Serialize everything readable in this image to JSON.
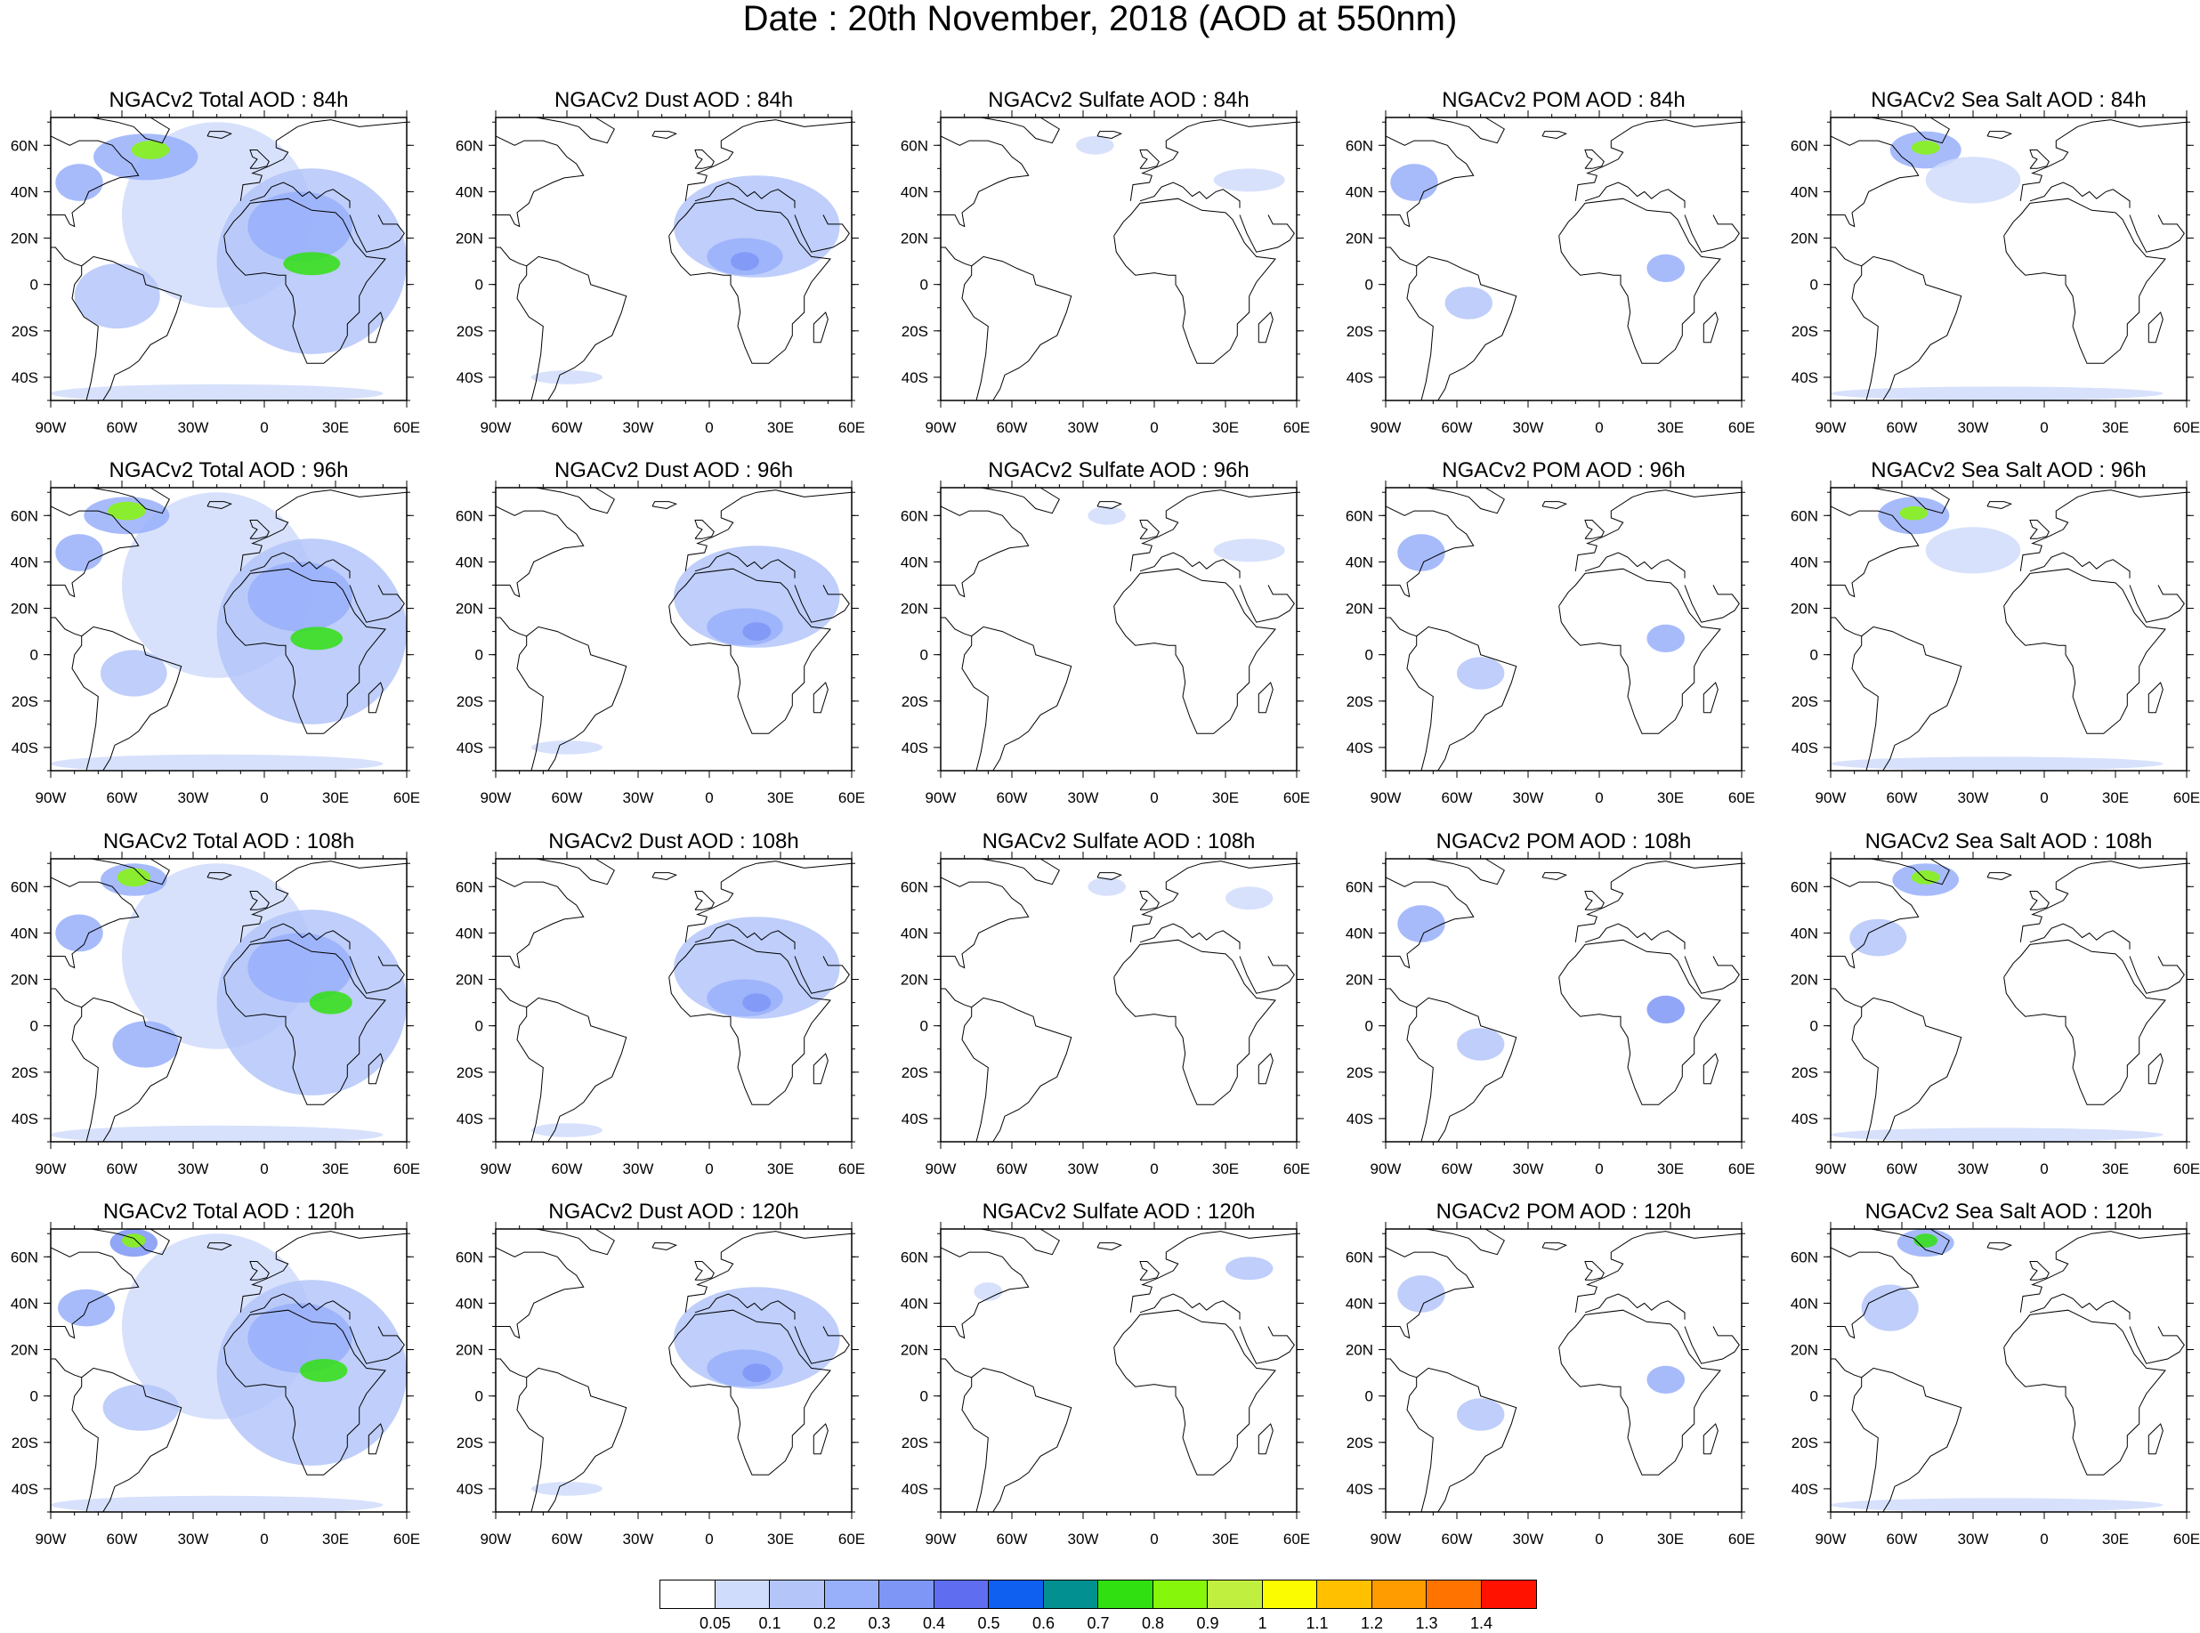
{
  "title": "Date : 20th November, 2018 (AOD at 550nm)",
  "rows": [
    "84h",
    "96h",
    "108h",
    "120h"
  ],
  "panels": [
    [
      "NGACv2 Total AOD : 84h",
      "NGACv2 Dust AOD : 84h",
      "NGACv2 Sulfate AOD : 84h",
      "NGACv2 POM AOD : 84h",
      "NGACv2 Sea Salt AOD : 84h"
    ],
    [
      "NGACv2 Total AOD : 96h",
      "NGACv2 Dust AOD : 96h",
      "NGACv2 Sulfate AOD : 96h",
      "NGACv2 POM AOD : 96h",
      "NGACv2 Sea Salt AOD : 96h"
    ],
    [
      "NGACv2 Total AOD : 108h",
      "NGACv2 Dust AOD : 108h",
      "NGACv2 Sulfate AOD : 108h",
      "NGACv2 POM AOD : 108h",
      "NGACv2 Sea Salt AOD : 108h"
    ],
    [
      "NGACv2 Total AOD : 120h",
      "NGACv2 Dust AOD : 120h",
      "NGACv2 Sulfate AOD : 120h",
      "NGACv2 POM AOD : 120h",
      "NGACv2 Sea Salt  AOD : 120h"
    ]
  ],
  "lat_ticks": [
    "60N",
    "40N",
    "20N",
    "0",
    "20S",
    "40S"
  ],
  "lon_ticks": [
    "90W",
    "60W",
    "30W",
    "0",
    "30E",
    "60E"
  ],
  "colorbar": {
    "labels": [
      "0.05",
      "0.1",
      "0.2",
      "0.3",
      "0.4",
      "0.5",
      "0.6",
      "0.7",
      "0.8",
      "0.9",
      "1",
      "1.1",
      "1.2",
      "1.3",
      "1.4"
    ],
    "colors": [
      "#ffffff",
      "#d0dcfb",
      "#b4c6f9",
      "#98affa",
      "#7e96f6",
      "#5f6df0",
      "#0f5ff0",
      "#039090",
      "#30e010",
      "#86f60b",
      "#c1ef40",
      "#fcfc00",
      "#ffc000",
      "#ff9c00",
      "#ff7400",
      "#ff1200"
    ]
  }
}
